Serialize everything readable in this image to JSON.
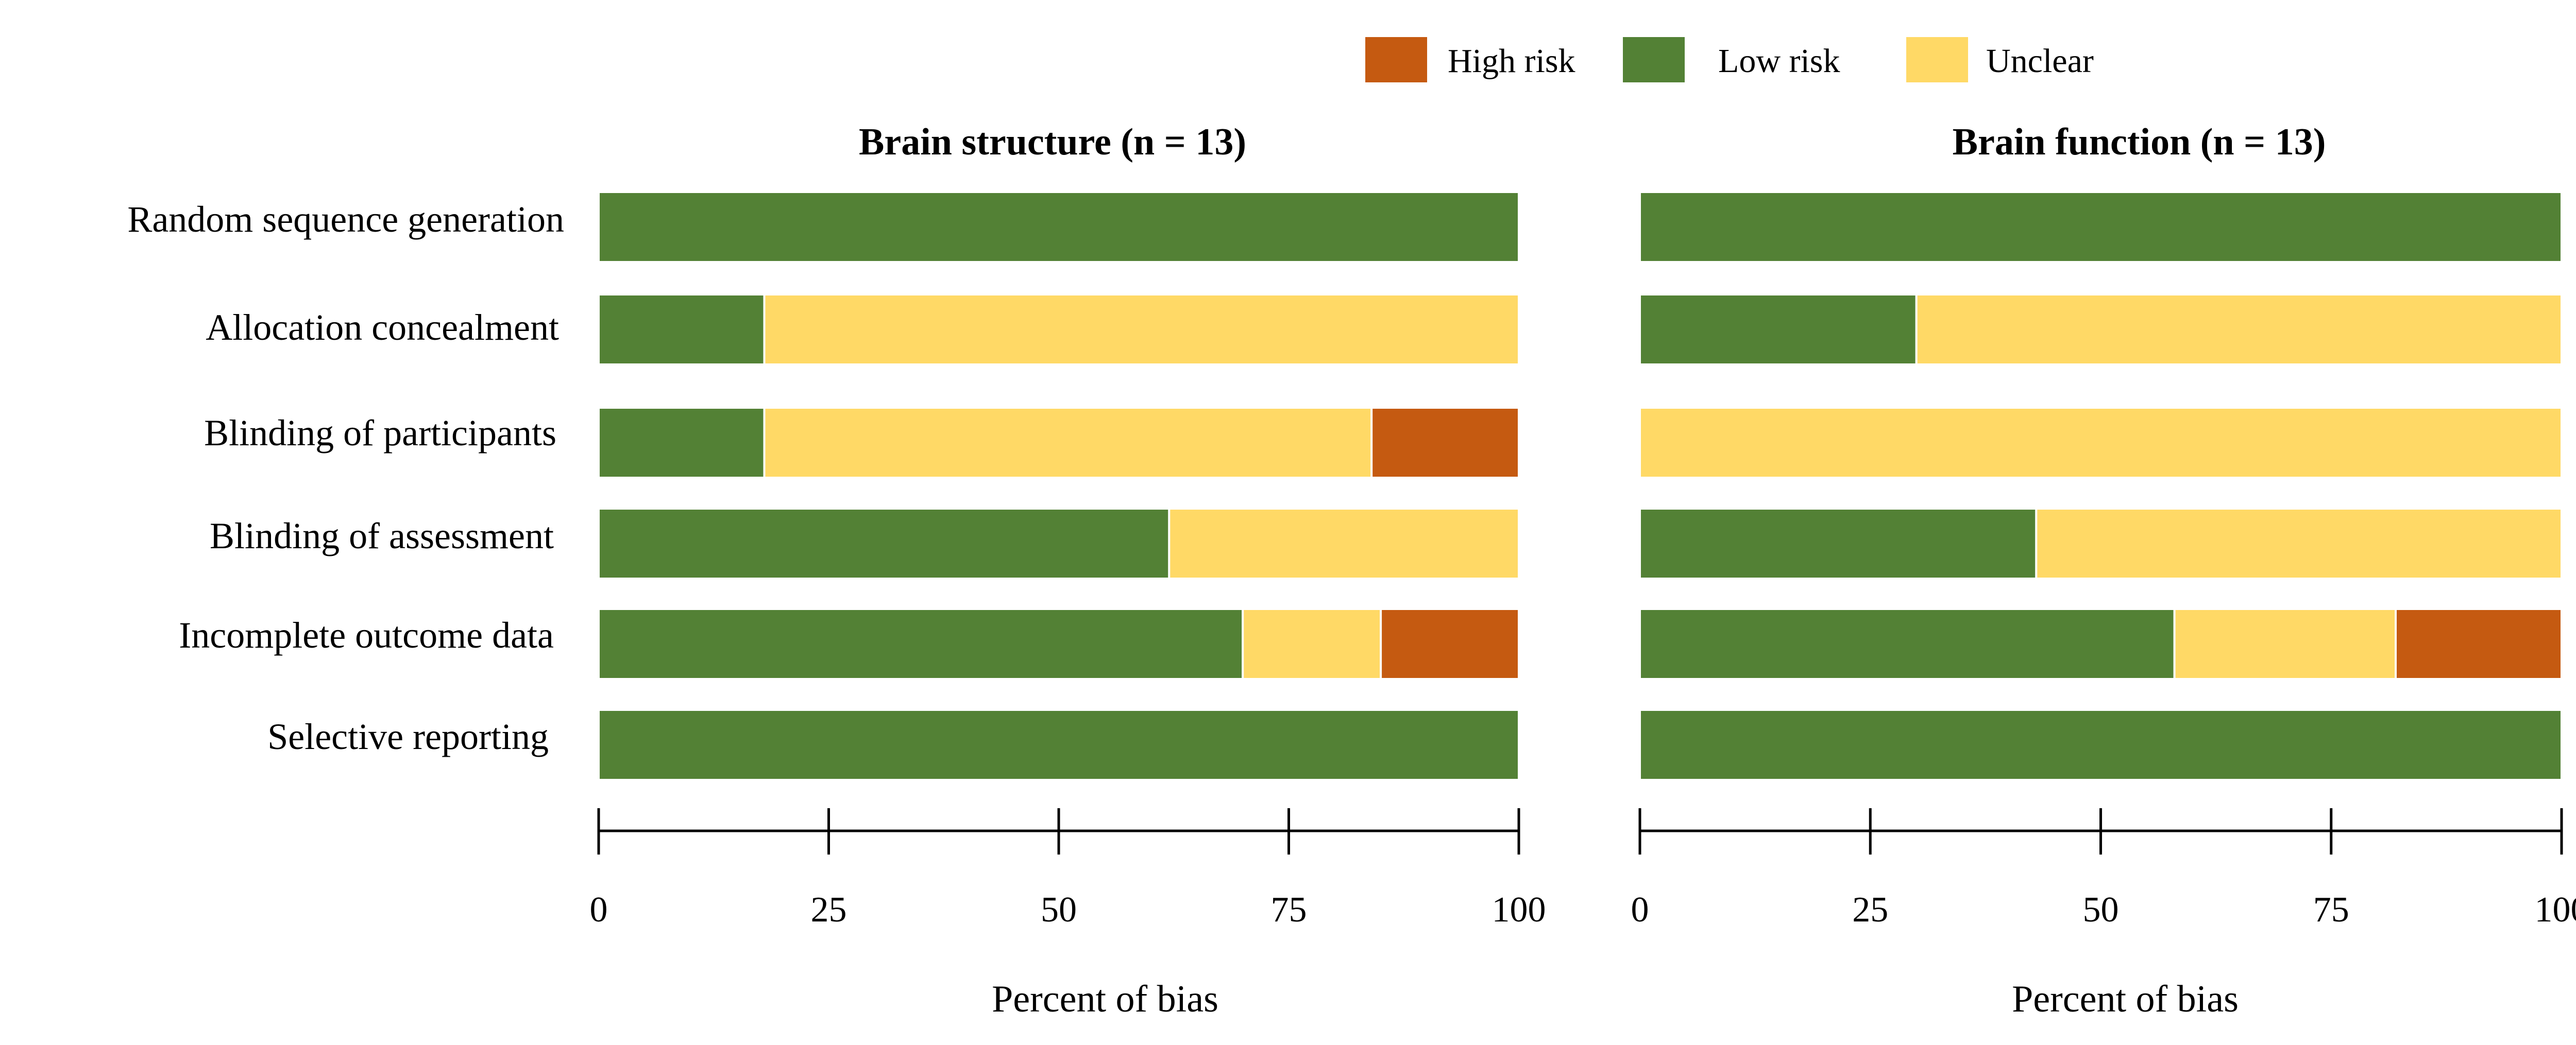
{
  "chart_data": {
    "type": "bar",
    "orientation": "horizontal",
    "stacked": true,
    "categories": [
      "Random sequence generation",
      "Allocation concealment",
      "Blinding of participants",
      "Blinding of assessment",
      "Incomplete outcome data",
      "Selective reporting"
    ],
    "legend": {
      "position": "top-right",
      "items": [
        {
          "name": "High risk",
          "color": "#C55A11"
        },
        {
          "name": "Low risk",
          "color": "#538135"
        },
        {
          "name": "Unclear",
          "color": "#FFD966"
        }
      ]
    },
    "xlim": [
      0,
      100
    ],
    "xticks": [
      "0",
      "25",
      "50",
      "75",
      "100"
    ],
    "panels": [
      {
        "title": "Brain structure (n = 13)",
        "xlabel": "Percent of bias",
        "series": [
          {
            "name": "Low risk",
            "color": "#538135",
            "values": [
              100,
              18,
              18,
              62,
              70,
              100
            ]
          },
          {
            "name": "Unclear",
            "color": "#FFD966",
            "values": [
              0,
              82,
              66,
              38,
              15,
              0
            ]
          },
          {
            "name": "High risk",
            "color": "#C55A11",
            "values": [
              0,
              0,
              16,
              0,
              15,
              0
            ]
          }
        ]
      },
      {
        "title": "Brain function (n = 13)",
        "xlabel": "Percent of bias",
        "series": [
          {
            "name": "Low risk",
            "color": "#538135",
            "values": [
              100,
              30,
              0,
              43,
              58,
              100
            ]
          },
          {
            "name": "Unclear",
            "color": "#FFD966",
            "values": [
              0,
              70,
              100,
              57,
              24,
              0
            ]
          },
          {
            "name": "High risk",
            "color": "#C55A11",
            "values": [
              0,
              0,
              0,
              0,
              18,
              0
            ]
          }
        ]
      }
    ]
  }
}
